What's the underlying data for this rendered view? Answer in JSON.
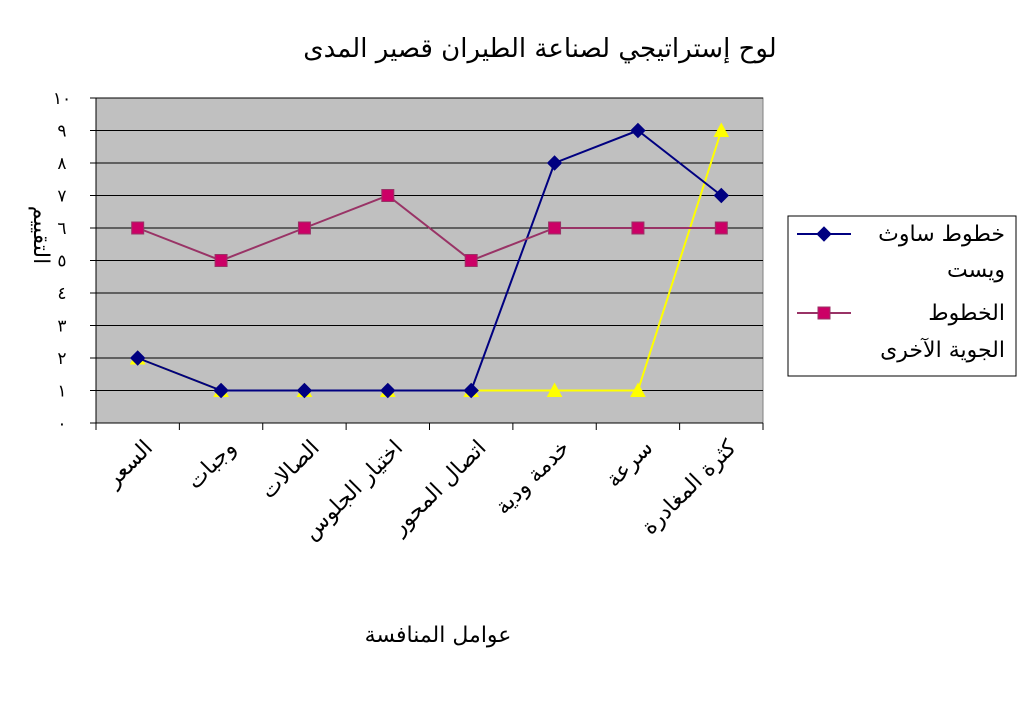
{
  "chart_data": {
    "type": "line",
    "title": "لوح إستراتيجي لصناعة الطيران قصير المدى",
    "xlabel": "عوامل المنافسة",
    "ylabel": "التقييم",
    "ylim": [
      0,
      10
    ],
    "y_ticks": [
      "٠",
      "١",
      "٢",
      "٣",
      "٤",
      "٥",
      "٦",
      "٧",
      "٨",
      "٩",
      "١٠"
    ],
    "grid": true,
    "legend_position": "right",
    "categories": [
      "السعر",
      "وجبات",
      "الصالات",
      "اختيار الجلوس",
      "اتصال المحور",
      "خدمة ودية",
      "سرعة",
      "كثرة المغادرة"
    ],
    "series": [
      {
        "name": "خطوط ساوث ويست",
        "legend_lines": [
          "خطوط ساوث",
          "ويست"
        ],
        "color": "#000080",
        "marker": "diamond",
        "show_in_legend": true,
        "values": [
          2,
          1,
          1,
          1,
          1,
          8,
          9,
          7
        ]
      },
      {
        "name": "الخطوط الجوية الآخرى",
        "legend_lines": [
          "الخطوط",
          "الجوية الآخرى"
        ],
        "color": "#993366",
        "marker": "square",
        "show_in_legend": true,
        "values": [
          6,
          5,
          6,
          7,
          5,
          6,
          6,
          6
        ]
      },
      {
        "name": "",
        "color": "#FFFF00",
        "marker": "triangle",
        "show_in_legend": false,
        "values": [
          2,
          1,
          1,
          1,
          1,
          1,
          1,
          9
        ]
      }
    ],
    "colors": {
      "plot_background": "#C0C0C0",
      "gridline": "#000000"
    }
  }
}
